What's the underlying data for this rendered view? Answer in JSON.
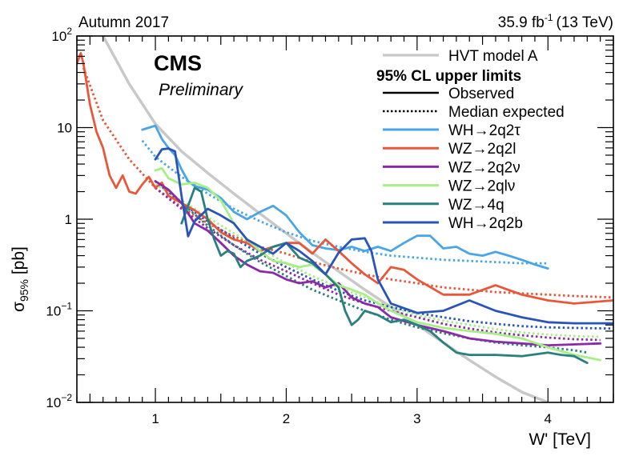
{
  "header": {
    "left": "Autumn 2017",
    "lumi": "35.9 fb",
    "lumi_exp": "-1",
    "energy": "(13 TeV)"
  },
  "labels": {
    "experiment": "CMS",
    "status": "Preliminary"
  },
  "legend": {
    "model": "HVT model A",
    "title": "95% CL upper limits",
    "observed": "Observed",
    "expected": "Median expected"
  },
  "colors": {
    "hvt": "#c8c8c8",
    "wh_2q2tau": "#4aa5e8",
    "wz_2q2l": "#e8573a",
    "wz_2q2nu": "#8a2aa8",
    "wz_2qlnu": "#a8ee88",
    "wz_4q": "#2a7f7f",
    "wh_2q2b": "#2a55b8"
  },
  "chart_data": {
    "type": "line",
    "xlabel": "W' [TeV]",
    "ylabel": "σ95% [pb]",
    "ylabel_main": "σ",
    "ylabel_sub": "95%",
    "ylabel_unit": " [pb]",
    "xlim": [
      0.4,
      4.5
    ],
    "ylim": [
      0.01,
      100
    ],
    "yscale": "log",
    "xticks": [
      1,
      2,
      3,
      4
    ],
    "yticks": [
      {
        "value": 0.01,
        "base": "10",
        "exp": "−2"
      },
      {
        "value": 0.1,
        "base": "10",
        "exp": "−1"
      },
      {
        "value": 1,
        "base": "1",
        "exp": ""
      },
      {
        "value": 10,
        "base": "10",
        "exp": ""
      },
      {
        "value": 100,
        "base": "10",
        "exp": "2"
      }
    ],
    "theory": {
      "name": "HVT model A",
      "color": "#c8c8c8",
      "x": [
        0.6,
        0.8,
        1.0,
        1.2,
        1.4,
        1.6,
        1.8,
        2.0,
        2.2,
        2.4,
        2.6,
        2.8,
        3.0,
        3.2,
        3.4,
        3.6,
        3.8,
        4.0
      ],
      "y": [
        100,
        30,
        11,
        5.5,
        3.2,
        1.9,
        1.15,
        0.7,
        0.43,
        0.27,
        0.17,
        0.11,
        0.07,
        0.045,
        0.029,
        0.019,
        0.013,
        0.0085
      ]
    },
    "series": [
      {
        "name": "WH→2q2τ",
        "color": "#4aa5e8",
        "observed": {
          "x": [
            0.9,
            1.0,
            1.05,
            1.1,
            1.15,
            1.2,
            1.25,
            1.3,
            1.4,
            1.5,
            1.6,
            1.7,
            1.8,
            1.9,
            2.0,
            2.1,
            2.2,
            2.3,
            2.4,
            2.5,
            2.6,
            2.7,
            2.8,
            2.9,
            3.0,
            3.1,
            3.2,
            3.3,
            3.4,
            3.5,
            3.6,
            3.7,
            3.8,
            3.9,
            4.0
          ],
          "y": [
            9.5,
            10.5,
            7.5,
            6.0,
            5.0,
            3.5,
            2.6,
            2.3,
            2.1,
            1.7,
            1.2,
            1.0,
            1.2,
            1.4,
            1.1,
            0.72,
            0.52,
            0.48,
            0.46,
            0.5,
            0.45,
            0.5,
            0.45,
            0.55,
            0.66,
            0.66,
            0.48,
            0.5,
            0.42,
            0.4,
            0.44,
            0.4,
            0.36,
            0.32,
            0.29
          ]
        },
        "expected": {
          "x": [
            0.9,
            1.0,
            1.2,
            1.4,
            1.6,
            1.8,
            2.0,
            2.2,
            2.4,
            2.6,
            2.8,
            3.0,
            3.2,
            3.4,
            3.6,
            3.8,
            4.0
          ],
          "y": [
            7.2,
            4.8,
            2.9,
            1.9,
            1.3,
            0.95,
            0.72,
            0.58,
            0.5,
            0.44,
            0.4,
            0.38,
            0.36,
            0.35,
            0.34,
            0.33,
            0.33
          ]
        }
      },
      {
        "name": "WZ→2q2l",
        "color": "#e8573a",
        "observed": {
          "x": [
            0.4,
            0.43,
            0.45,
            0.5,
            0.55,
            0.6,
            0.65,
            0.7,
            0.75,
            0.8,
            0.85,
            0.9,
            0.95,
            1.0,
            1.05,
            1.1,
            1.2,
            1.3,
            1.4,
            1.5,
            1.6,
            1.7,
            1.8,
            1.9,
            2.0,
            2.1,
            2.2,
            2.3,
            2.4,
            2.5,
            2.6,
            2.7,
            2.8,
            2.9,
            3.0,
            3.2,
            3.4,
            3.6,
            3.8,
            4.0,
            4.2,
            4.5
          ],
          "y": [
            50,
            65,
            50,
            18,
            9,
            6,
            3.0,
            2.2,
            3.0,
            2.0,
            1.9,
            2.4,
            2.9,
            2.2,
            2.5,
            1.8,
            1.5,
            1.25,
            1.0,
            0.72,
            0.6,
            0.55,
            0.45,
            0.5,
            0.55,
            0.55,
            0.42,
            0.6,
            0.45,
            0.33,
            0.25,
            0.2,
            0.3,
            0.28,
            0.22,
            0.15,
            0.15,
            0.19,
            0.15,
            0.13,
            0.12,
            0.13
          ]
        },
        "expected": {
          "x": [
            0.45,
            0.6,
            0.8,
            1.0,
            1.2,
            1.4,
            1.6,
            1.8,
            2.0,
            2.2,
            2.4,
            2.6,
            2.8,
            3.0,
            3.2,
            3.4,
            3.6,
            3.8,
            4.0,
            4.2,
            4.5
          ],
          "y": [
            45,
            12,
            4.5,
            2.2,
            1.35,
            0.9,
            0.65,
            0.5,
            0.42,
            0.34,
            0.29,
            0.25,
            0.22,
            0.2,
            0.18,
            0.17,
            0.16,
            0.155,
            0.15,
            0.145,
            0.14
          ]
        }
      },
      {
        "name": "WZ→2q2ν",
        "color": "#8a2aa8",
        "observed": {
          "x": [
            1.0,
            1.1,
            1.2,
            1.3,
            1.4,
            1.5,
            1.6,
            1.7,
            1.8,
            1.9,
            2.0,
            2.1,
            2.2,
            2.3,
            2.4,
            2.5,
            2.6,
            2.7,
            2.8,
            3.0,
            3.2,
            3.4,
            3.6,
            3.8,
            4.0,
            4.2,
            4.4
          ],
          "y": [
            2.6,
            2.1,
            1.5,
            0.9,
            0.75,
            0.55,
            0.4,
            0.32,
            0.27,
            0.26,
            0.22,
            0.2,
            0.21,
            0.18,
            0.2,
            0.14,
            0.12,
            0.11,
            0.085,
            0.07,
            0.06,
            0.05,
            0.046,
            0.044,
            0.042,
            0.043,
            0.044
          ]
        },
        "expected": {
          "x": [
            1.0,
            1.2,
            1.4,
            1.6,
            1.8,
            2.0,
            2.2,
            2.4,
            2.6,
            2.8,
            3.0,
            3.2,
            3.4,
            3.6,
            3.8,
            4.0,
            4.2,
            4.4
          ],
          "y": [
            2.2,
            1.3,
            0.8,
            0.52,
            0.36,
            0.27,
            0.2,
            0.15,
            0.12,
            0.1,
            0.085,
            0.072,
            0.064,
            0.058,
            0.054,
            0.051,
            0.049,
            0.048
          ]
        }
      },
      {
        "name": "WZ→2qlν",
        "color": "#a8ee88",
        "observed": {
          "x": [
            1.0,
            1.05,
            1.1,
            1.2,
            1.3,
            1.4,
            1.5,
            1.6,
            1.7,
            1.8,
            1.9,
            2.0,
            2.1,
            2.2,
            2.3,
            2.4,
            2.5,
            2.6,
            2.7,
            2.8,
            3.0,
            3.2,
            3.4,
            3.6,
            3.8,
            4.0,
            4.2,
            4.4
          ],
          "y": [
            3.4,
            3.6,
            2.8,
            2.4,
            2.5,
            2.2,
            1.6,
            0.9,
            0.6,
            0.45,
            0.35,
            0.33,
            0.3,
            0.32,
            0.25,
            0.19,
            0.17,
            0.15,
            0.12,
            0.1,
            0.075,
            0.065,
            0.06,
            0.056,
            0.05,
            0.04,
            0.033,
            0.029
          ]
        },
        "expected": {
          "x": [
            1.0,
            1.2,
            1.4,
            1.6,
            1.8,
            2.0,
            2.2,
            2.4,
            2.6,
            2.8,
            3.0,
            3.2,
            3.4,
            3.6,
            3.8,
            4.0,
            4.2,
            4.4
          ],
          "y": [
            2.4,
            1.6,
            1.05,
            0.7,
            0.48,
            0.33,
            0.24,
            0.18,
            0.14,
            0.11,
            0.09,
            0.078,
            0.07,
            0.063,
            0.058,
            0.055,
            0.053,
            0.052
          ]
        }
      },
      {
        "name": "WZ→4q",
        "color": "#2a7f7f",
        "observed": {
          "x": [
            1.2,
            1.25,
            1.3,
            1.35,
            1.4,
            1.45,
            1.5,
            1.55,
            1.6,
            1.65,
            1.7,
            1.8,
            1.9,
            2.0,
            2.1,
            2.2,
            2.3,
            2.4,
            2.45,
            2.5,
            2.55,
            2.6,
            2.7,
            2.8,
            2.9,
            3.0,
            3.1,
            3.2,
            3.3,
            3.4,
            3.6,
            3.8,
            4.0,
            4.1,
            4.2,
            4.3
          ],
          "y": [
            0.9,
            1.4,
            2.2,
            2.0,
            1.0,
            0.6,
            0.4,
            0.45,
            0.42,
            0.3,
            0.35,
            0.4,
            0.5,
            0.55,
            0.38,
            0.33,
            0.25,
            0.18,
            0.1,
            0.07,
            0.08,
            0.1,
            0.09,
            0.075,
            0.08,
            0.07,
            0.06,
            0.045,
            0.035,
            0.033,
            0.033,
            0.032,
            0.035,
            0.033,
            0.032,
            0.027
          ]
        },
        "expected": {
          "x": [
            1.2,
            1.4,
            1.6,
            1.8,
            2.0,
            2.2,
            2.4,
            2.6,
            2.8,
            3.0,
            3.2,
            3.4,
            3.6,
            3.8,
            4.0,
            4.2,
            4.3
          ],
          "y": [
            1.5,
            0.85,
            0.52,
            0.34,
            0.24,
            0.17,
            0.13,
            0.1,
            0.08,
            0.066,
            0.057,
            0.05,
            0.045,
            0.042,
            0.04,
            0.037,
            0.035
          ]
        }
      },
      {
        "name": "WH→2q2b",
        "color": "#2a55b8",
        "observed": {
          "x": [
            1.0,
            1.05,
            1.1,
            1.15,
            1.2,
            1.25,
            1.3,
            1.4,
            1.5,
            1.6,
            1.7,
            1.8,
            1.9,
            2.0,
            2.1,
            2.2,
            2.3,
            2.4,
            2.5,
            2.6,
            2.65,
            2.7,
            2.8,
            3.0,
            3.2,
            3.4,
            3.6,
            3.8,
            4.0,
            4.2,
            4.5
          ],
          "y": [
            4.5,
            5.8,
            5.9,
            5.5,
            1.8,
            0.65,
            0.95,
            1.3,
            1.1,
            0.9,
            0.6,
            0.5,
            0.42,
            0.55,
            0.45,
            0.35,
            0.25,
            0.43,
            0.6,
            0.62,
            0.45,
            0.22,
            0.12,
            0.095,
            0.1,
            0.13,
            0.1,
            0.085,
            0.075,
            0.073,
            0.073
          ]
        },
        "expected": {
          "x": [
            1.0,
            1.2,
            1.4,
            1.6,
            1.8,
            2.0,
            2.2,
            2.4,
            2.6,
            2.8,
            3.0,
            3.2,
            3.4,
            3.6,
            3.8,
            4.0,
            4.2,
            4.5
          ],
          "y": [
            2.6,
            1.5,
            0.95,
            0.62,
            0.42,
            0.3,
            0.22,
            0.165,
            0.13,
            0.11,
            0.095,
            0.085,
            0.077,
            0.072,
            0.068,
            0.066,
            0.065,
            0.064
          ]
        }
      }
    ]
  }
}
